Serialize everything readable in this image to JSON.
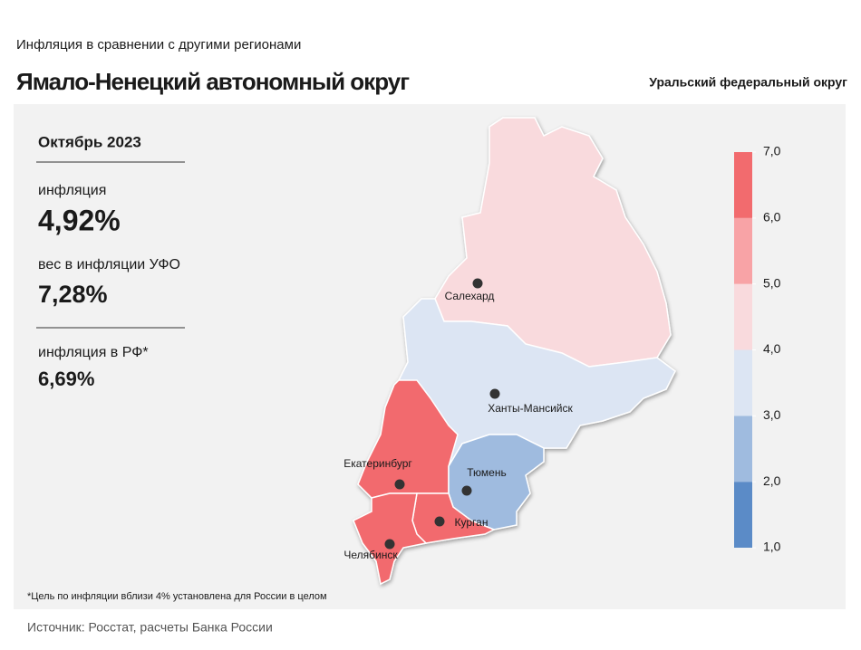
{
  "header": {
    "subtitle": "Инфляция  в сравнении  с другими  регионами",
    "title": "Ямало-Ненецкий автономный округ",
    "district": "Уральский федеральный округ"
  },
  "panel": {
    "period": "Октябрь 2023",
    "inflation_label": "инфляция",
    "inflation_value": "4,92%",
    "weight_label": "вес в инфляции  УФО",
    "weight_value": "7,28%",
    "rf_label": "инфляция  в РФ*",
    "rf_value": "6,69%"
  },
  "legend": {
    "ticks": [
      {
        "value": 1,
        "label": "1,0"
      },
      {
        "value": 2,
        "label": "2,0"
      },
      {
        "value": 3,
        "label": "3,0"
      },
      {
        "value": 4,
        "label": "4,0"
      },
      {
        "value": 5,
        "label": "5,0"
      },
      {
        "value": 6,
        "label": "6,0"
      },
      {
        "value": 7,
        "label": "7,0"
      }
    ],
    "colors": [
      "#5b8bc7",
      "#9fbbdf",
      "#dce5f3",
      "#f9dadd",
      "#f8a3a6",
      "#f26b6e"
    ]
  },
  "regions": [
    {
      "city": "Салехард",
      "color": "#f9dadd"
    },
    {
      "city": "Ханты-Мансийск",
      "color": "#dce5f3"
    },
    {
      "city": "Екатеринбург",
      "color": "#f26b6e"
    },
    {
      "city": "Тюмень",
      "color": "#9fbbdf"
    },
    {
      "city": "Курган",
      "color": "#f26b6e"
    },
    {
      "city": "Челябинск",
      "color": "#f26b6e"
    }
  ],
  "footnote": "*Цель по инфляции вблизи 4% установлена для России в целом",
  "source": "Источник: Росстат, расчеты Банка России"
}
